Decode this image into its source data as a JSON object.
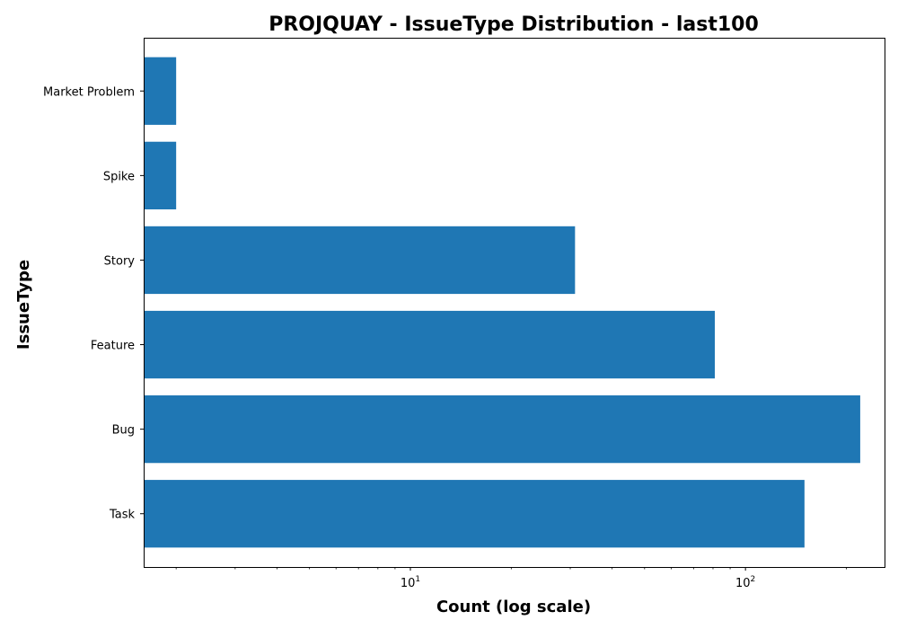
{
  "chart_data": {
    "type": "bar",
    "orientation": "horizontal",
    "title": "PROJQUAY - IssueType Distribution - last100",
    "xlabel": "Count (log scale)",
    "ylabel": "IssueType",
    "xscale": "log",
    "xlim": [
      1.6,
      260
    ],
    "grid": false,
    "categories": [
      "Task",
      "Bug",
      "Feature",
      "Story",
      "Spike",
      "Market Problem"
    ],
    "values": [
      150,
      220,
      81,
      31,
      2,
      2
    ],
    "bar_color": "#1f77b4",
    "xticks": [
      {
        "value": 10,
        "base": "10",
        "exp": "1"
      },
      {
        "value": 100,
        "base": "10",
        "exp": "2"
      }
    ]
  }
}
